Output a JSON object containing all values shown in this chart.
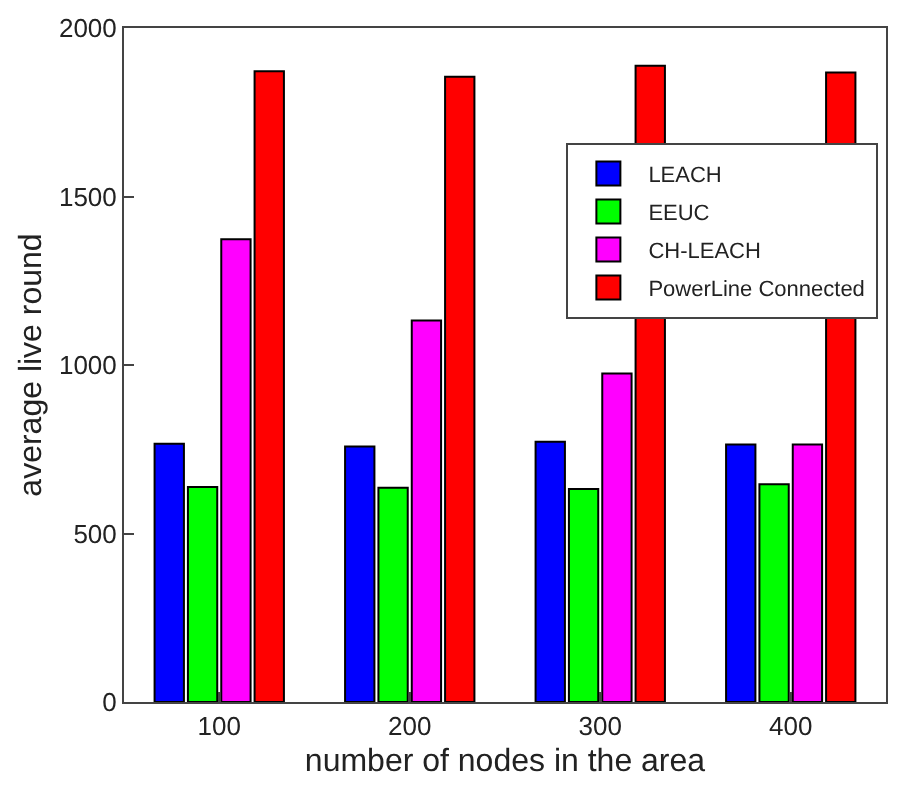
{
  "chart_data": {
    "type": "bar",
    "xlabel": "number of nodes in the area",
    "ylabel": "average live round",
    "categories": [
      "100",
      "200",
      "300",
      "400"
    ],
    "series": [
      {
        "name": "LEACH",
        "color": "#0000ff",
        "values": [
          766,
          758,
          772,
          764
        ]
      },
      {
        "name": "EEUC",
        "color": "#00ff00",
        "values": [
          638,
          636,
          632,
          646
        ]
      },
      {
        "name": "CH-LEACH",
        "color": "#ff00ff",
        "values": [
          1373,
          1132,
          975,
          764
        ]
      },
      {
        "name": "PowerLine Connected",
        "color": "#ff0000",
        "values": [
          1872,
          1855,
          1888,
          1868
        ]
      }
    ],
    "ylim": [
      0,
      2000
    ],
    "yticks": [
      0,
      500,
      1000,
      1500,
      2000
    ],
    "legend": "top right"
  }
}
